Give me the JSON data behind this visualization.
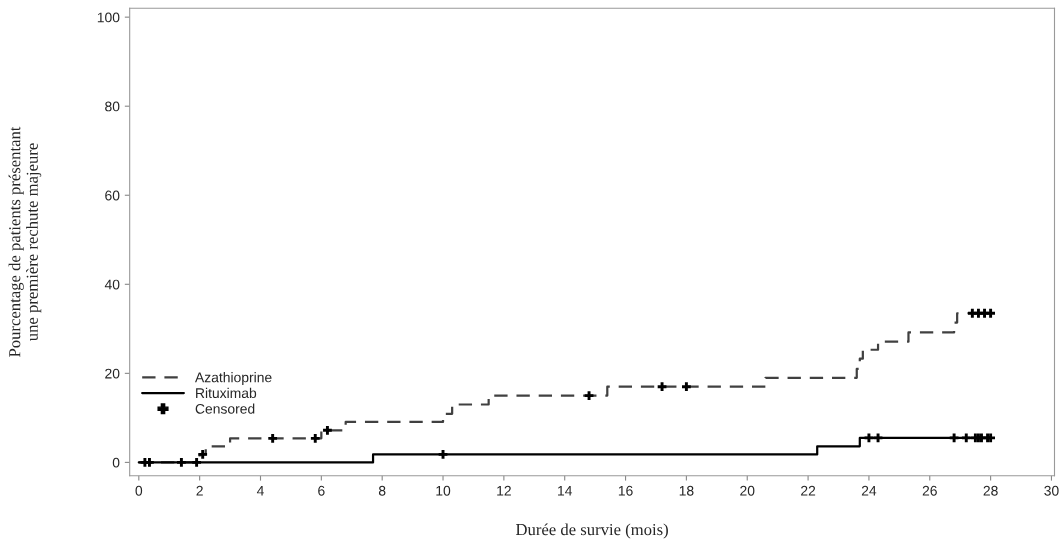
{
  "chart_data": {
    "type": "step",
    "xlabel": "Durée de survie (mois)",
    "ylabel": "Pourcentage de patients présentant\nune première rechute majeure",
    "xlim": [
      -0.3,
      30.1
    ],
    "ylim": [
      -3,
      102
    ],
    "xticks": [
      0,
      2,
      4,
      6,
      8,
      10,
      12,
      14,
      16,
      18,
      20,
      22,
      24,
      26,
      28,
      30
    ],
    "yticks": [
      0,
      20,
      40,
      60,
      80,
      100
    ],
    "grid": false,
    "legend": "bottom left",
    "series": [
      {
        "name": "Azathioprine",
        "color": "#404040",
        "line_style": "dashed",
        "x": [
          0,
          2.0,
          2.2,
          3.0,
          6.0,
          6.8,
          10.0,
          10.3,
          11.5,
          15.4,
          20.6,
          23.6,
          23.7,
          23.8,
          24.3,
          25.3,
          26.8,
          26.9,
          28.0
        ],
        "values": [
          0,
          1.8,
          3.6,
          5.4,
          7.2,
          9.1,
          10.9,
          13.0,
          15.0,
          17.0,
          19.0,
          21.0,
          23.3,
          25.3,
          27.1,
          29.2,
          31.4,
          33.5,
          33.5
        ]
      },
      {
        "name": "Rituximab",
        "color": "#000000",
        "line_style": "solid",
        "x": [
          0,
          7.7,
          22.3,
          23.7,
          28.0
        ],
        "values": [
          0,
          1.8,
          3.6,
          5.5,
          5.5
        ]
      },
      {
        "name": "Censored",
        "type": "scatter",
        "marker": "cross",
        "color": "#000000",
        "x": [
          0.2,
          0.35,
          1.4,
          1.9,
          2.1,
          4.4,
          5.8,
          6.2,
          14.8,
          17.2,
          18.0,
          27.4,
          27.6,
          27.8,
          28.0,
          10.0,
          24.0,
          24.3,
          26.8,
          27.2,
          27.5,
          27.6,
          27.7,
          27.9,
          28.0
        ],
        "values": [
          0,
          0,
          0,
          0,
          1.8,
          5.4,
          5.4,
          7.2,
          15.0,
          17.0,
          17.0,
          33.5,
          33.5,
          33.5,
          33.5,
          1.8,
          5.5,
          5.5,
          5.5,
          5.5,
          5.5,
          5.5,
          5.5,
          5.5,
          5.5
        ]
      }
    ]
  }
}
